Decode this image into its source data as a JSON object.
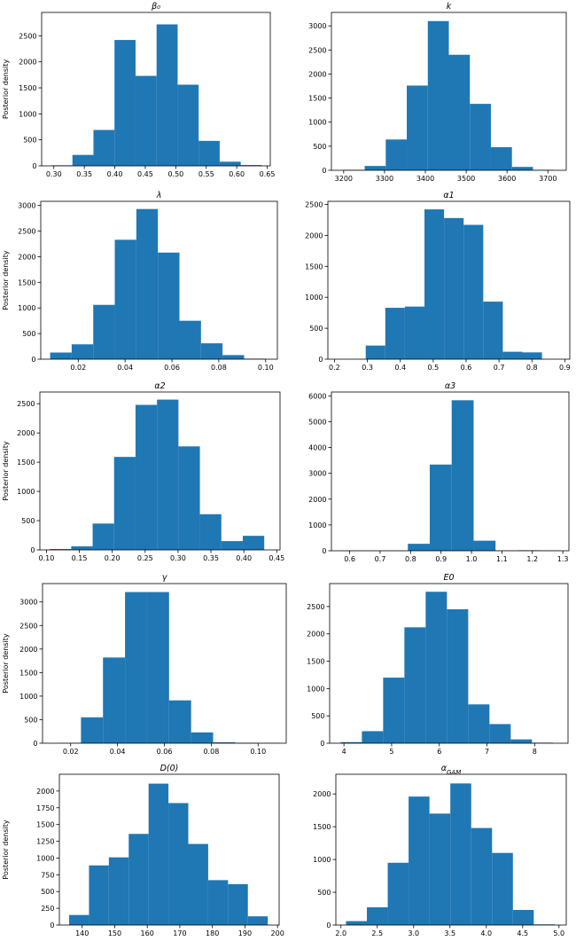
{
  "figure": {
    "bar_color": "#1f77b4",
    "ylabel": "Posterior density"
  },
  "chart_data": [
    {
      "type": "bar",
      "title": "β₀",
      "ylabel": "Posterior density",
      "xlim": [
        0.28,
        0.655
      ],
      "ylim": [
        0,
        2950
      ],
      "xticks": [
        0.3,
        0.35,
        0.4,
        0.45,
        0.5,
        0.55,
        0.6,
        0.65
      ],
      "xtick_labels": [
        "0.30",
        "0.35",
        "0.40",
        "0.45",
        "0.50",
        "0.55",
        "0.60",
        "0.65"
      ],
      "yticks": [
        0,
        500,
        1000,
        1500,
        2000,
        2500
      ],
      "ytick_labels": [
        "0",
        "500",
        "1000",
        "1500",
        "2000",
        "2500"
      ],
      "edges": [
        0.296,
        0.3305,
        0.365,
        0.3995,
        0.434,
        0.4685,
        0.503,
        0.5375,
        0.572,
        0.6065,
        0.641
      ],
      "values": [
        10,
        210,
        690,
        2420,
        1730,
        2720,
        1560,
        480,
        80,
        15
      ]
    },
    {
      "type": "bar",
      "title": "k",
      "ylabel": "",
      "xlim": [
        3170,
        3745
      ],
      "ylim": [
        0,
        3280
      ],
      "xticks": [
        3200,
        3300,
        3400,
        3500,
        3600,
        3700
      ],
      "xtick_labels": [
        "3200",
        "3300",
        "3400",
        "3500",
        "3600",
        "3700"
      ],
      "yticks": [
        0,
        500,
        1000,
        1500,
        2000,
        2500,
        3000
      ],
      "ytick_labels": [
        "0",
        "500",
        "1000",
        "1500",
        "2000",
        "2500",
        "3000"
      ],
      "edges": [
        3200,
        3251.5,
        3303,
        3354.5,
        3406,
        3457.5,
        3509,
        3560.5,
        3612,
        3663.5,
        3715
      ],
      "values": [
        10,
        90,
        640,
        1760,
        3100,
        2400,
        1380,
        480,
        70,
        10
      ]
    },
    {
      "type": "bar",
      "title": "λ",
      "ylabel": "Posterior density",
      "xlim": [
        0.004,
        0.105
      ],
      "ylim": [
        0,
        3080
      ],
      "xticks": [
        0.02,
        0.04,
        0.06,
        0.08,
        0.1
      ],
      "xtick_labels": [
        "0.02",
        "0.04",
        "0.06",
        "0.08",
        "0.10"
      ],
      "yticks": [
        0,
        500,
        1000,
        1500,
        2000,
        2500,
        3000
      ],
      "ytick_labels": [
        "0",
        "500",
        "1000",
        "1500",
        "2000",
        "2500",
        "3000"
      ],
      "edges": [
        0.008,
        0.0172,
        0.0264,
        0.0356,
        0.0448,
        0.054,
        0.0632,
        0.0724,
        0.0816,
        0.0908,
        0.1
      ],
      "values": [
        130,
        290,
        1060,
        2330,
        2930,
        2080,
        750,
        310,
        80,
        10
      ]
    },
    {
      "type": "bar",
      "title": "α1",
      "ylabel": "",
      "xlim": [
        0.18,
        0.915
      ],
      "ylim": [
        0,
        2550
      ],
      "xticks": [
        0.2,
        0.3,
        0.4,
        0.5,
        0.6,
        0.7,
        0.8,
        0.9
      ],
      "xtick_labels": [
        "0.2",
        "0.3",
        "0.4",
        "0.5",
        "0.6",
        "0.7",
        "0.8",
        "0.9"
      ],
      "yticks": [
        0,
        500,
        1000,
        1500,
        2000,
        2500
      ],
      "ytick_labels": [
        "0",
        "500",
        "1000",
        "1500",
        "2000",
        "2500"
      ],
      "edges": [
        0.295,
        0.3545,
        0.414,
        0.4735,
        0.533,
        0.5925,
        0.652,
        0.7115,
        0.771,
        0.8305,
        0.89
      ],
      "values": [
        220,
        830,
        850,
        2420,
        2280,
        2170,
        930,
        120,
        110,
        0
      ]
    },
    {
      "type": "bar",
      "title": "α2",
      "ylabel": "Posterior density",
      "xlim": [
        0.09,
        0.455
      ],
      "ylim": [
        0,
        2700
      ],
      "xticks": [
        0.1,
        0.15,
        0.2,
        0.25,
        0.3,
        0.35,
        0.4,
        0.45
      ],
      "xtick_labels": [
        "0.10",
        "0.15",
        "0.20",
        "0.25",
        "0.30",
        "0.35",
        "0.40",
        "0.45"
      ],
      "yticks": [
        0,
        500,
        1000,
        1500,
        2000,
        2500
      ],
      "ytick_labels": [
        "0",
        "500",
        "1000",
        "1500",
        "2000",
        "2500"
      ],
      "edges": [
        0.105,
        0.1376,
        0.1702,
        0.2028,
        0.2354,
        0.268,
        0.3006,
        0.3332,
        0.3658,
        0.3984,
        0.431
      ],
      "values": [
        15,
        60,
        450,
        1590,
        2480,
        2570,
        1770,
        610,
        150,
        240
      ]
    },
    {
      "type": "bar",
      "title": "α3",
      "ylabel": "",
      "xlim": [
        0.54,
        1.32
      ],
      "ylim": [
        0,
        6150
      ],
      "xticks": [
        0.6,
        0.7,
        0.8,
        0.9,
        1.0,
        1.1,
        1.2,
        1.3
      ],
      "xtick_labels": [
        "0.6",
        "0.7",
        "0.8",
        "0.9",
        "1.0",
        "1.1",
        "1.2",
        "1.3"
      ],
      "yticks": [
        0,
        1000,
        2000,
        3000,
        4000,
        5000,
        6000
      ],
      "ytick_labels": [
        "0",
        "1000",
        "2000",
        "3000",
        "4000",
        "5000",
        "6000"
      ],
      "edges": [
        0.575,
        0.647,
        0.719,
        0.791,
        0.863,
        0.935,
        1.007,
        1.079,
        1.151,
        1.223,
        1.295
      ],
      "values": [
        5,
        5,
        5,
        270,
        3340,
        5830,
        390,
        10,
        20,
        15
      ]
    },
    {
      "type": "bar",
      "title": "γ",
      "ylabel": "Posterior density",
      "xlim": [
        0.008,
        0.112
      ],
      "ylim": [
        0,
        3390
      ],
      "xticks": [
        0.02,
        0.04,
        0.06,
        0.08,
        0.1
      ],
      "xtick_labels": [
        "0.02",
        "0.04",
        "0.06",
        "0.08",
        "0.10"
      ],
      "yticks": [
        0,
        500,
        1000,
        1500,
        2000,
        2500,
        3000
      ],
      "ytick_labels": [
        "0",
        "500",
        "1000",
        "1500",
        "2000",
        "2500",
        "3000"
      ],
      "edges": [
        0.015,
        0.0244,
        0.0338,
        0.0432,
        0.0526,
        0.062,
        0.0714,
        0.0808,
        0.0902,
        0.0996,
        0.109
      ],
      "values": [
        5,
        550,
        1820,
        3210,
        3210,
        910,
        230,
        20,
        10,
        5
      ]
    },
    {
      "type": "bar",
      "title": "E0",
      "ylabel": "",
      "xlim": [
        3.7,
        8.7
      ],
      "ylim": [
        0,
        2920
      ],
      "xticks": [
        4,
        5,
        6,
        7,
        8
      ],
      "xtick_labels": [
        "4",
        "5",
        "6",
        "7",
        "8"
      ],
      "yticks": [
        0,
        500,
        1000,
        1500,
        2000,
        2500
      ],
      "ytick_labels": [
        "0",
        "500",
        "1000",
        "1500",
        "2000",
        "2500"
      ],
      "edges": [
        3.93,
        4.376,
        4.822,
        5.268,
        5.714,
        6.16,
        6.606,
        7.052,
        7.498,
        7.944,
        8.39
      ],
      "values": [
        20,
        220,
        1200,
        2120,
        2770,
        2450,
        710,
        350,
        70,
        10
      ]
    },
    {
      "type": "bar",
      "title": "D(0)",
      "ylabel": "Posterior density",
      "xlim": [
        133,
        200.5
      ],
      "ylim": [
        0,
        2250
      ],
      "xticks": [
        140,
        150,
        160,
        170,
        180,
        190,
        200
      ],
      "xtick_labels": [
        "140",
        "150",
        "160",
        "170",
        "180",
        "190",
        "200"
      ],
      "yticks": [
        0,
        250,
        500,
        750,
        1000,
        1250,
        1500,
        1750,
        2000
      ],
      "ytick_labels": [
        "0",
        "250",
        "500",
        "750",
        "1000",
        "1250",
        "1500",
        "1750",
        "2000"
      ],
      "edges": [
        136,
        142.1,
        148.2,
        154.3,
        160.4,
        166.5,
        172.6,
        178.7,
        184.8,
        190.9,
        197
      ],
      "values": [
        150,
        890,
        1010,
        1360,
        2110,
        1820,
        1210,
        670,
        610,
        130
      ]
    },
    {
      "type": "bar",
      "title": "α_GAM",
      "ylabel": "",
      "xlim": [
        1.93,
        5.1
      ],
      "ylim": [
        0,
        2300
      ],
      "xticks": [
        2.0,
        2.5,
        3.0,
        3.5,
        4.0,
        4.5,
        5.0
      ],
      "xtick_labels": [
        "2.0",
        "2.5",
        "3.0",
        "3.5",
        "4.0",
        "4.5",
        "5.0"
      ],
      "yticks": [
        0,
        500,
        1000,
        1500,
        2000
      ],
      "ytick_labels": [
        "0",
        "500",
        "1000",
        "1500",
        "2000"
      ],
      "edges": [
        2.07,
        2.357,
        2.644,
        2.931,
        3.218,
        3.505,
        3.792,
        4.079,
        4.366,
        4.653,
        4.94
      ],
      "values": [
        60,
        270,
        950,
        1960,
        1700,
        2160,
        1480,
        1100,
        230,
        10
      ]
    }
  ]
}
